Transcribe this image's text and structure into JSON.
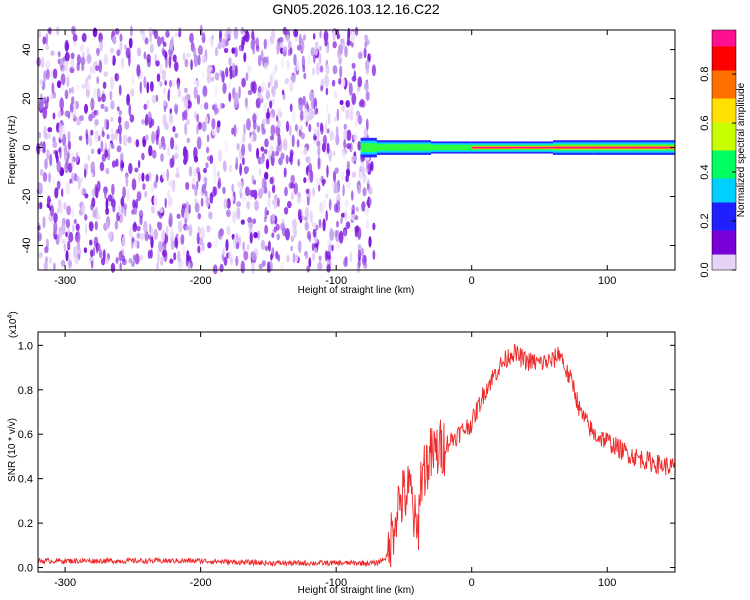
{
  "chart_data": [
    {
      "type": "heatmap",
      "title": "GN05.2026.103.12.16.C22",
      "xlabel": "Height of straight line (km)",
      "ylabel": "Frequency (Hz)",
      "xlim": [
        -320,
        150
      ],
      "ylim": [
        -50,
        48
      ],
      "xticks": [
        -300,
        -200,
        -100,
        0,
        100
      ],
      "yticks": [
        -40,
        -20,
        0,
        20,
        40
      ],
      "colorbar": {
        "label": "Normalized spectral amplitude",
        "range": [
          0,
          0.98
        ],
        "ticks": [
          "0.0",
          "0.2",
          "0.4",
          "0.6",
          "0.8"
        ],
        "tick_values": [
          0.0,
          0.2,
          0.4,
          0.6,
          0.8
        ],
        "colors": [
          "#e6d2f5",
          "#7a00d8",
          "#2020ff",
          "#00d0ff",
          "#00ff60",
          "#c8ff00",
          "#ffe000",
          "#ff7000",
          "#ff0000",
          "#ff1090"
        ]
      },
      "noise_region": {
        "x_range": [
          -320,
          -72
        ],
        "amplitude": 0.15
      },
      "signal_band": [
        {
          "x": -82,
          "half_width_hz": 4,
          "amplitude": 0.45
        },
        {
          "x": -70,
          "half_width_hz": 3,
          "amplitude": 0.5
        },
        {
          "x": -50,
          "half_width_hz": 3,
          "amplitude": 0.55
        },
        {
          "x": -30,
          "half_width_hz": 2.5,
          "amplitude": 0.6
        },
        {
          "x": -10,
          "half_width_hz": 2.5,
          "amplitude": 0.6
        },
        {
          "x": 0,
          "half_width_hz": 2.5,
          "amplitude": 0.8
        },
        {
          "x": 30,
          "half_width_hz": 2.5,
          "amplitude": 0.85
        },
        {
          "x": 60,
          "half_width_hz": 2.5,
          "amplitude": 0.9
        },
        {
          "x": 90,
          "half_width_hz": 3,
          "amplitude": 0.9
        },
        {
          "x": 120,
          "half_width_hz": 3,
          "amplitude": 0.92
        },
        {
          "x": 150,
          "half_width_hz": 3,
          "amplitude": 0.92
        }
      ]
    },
    {
      "type": "line",
      "xlabel": "Height of straight line (km)",
      "ylabel": "SNR (10 * v/v)",
      "y_multiplier_label": "(x10",
      "y_multiplier_exp": "4",
      "y_multiplier_close": ")",
      "xlim": [
        -320,
        150
      ],
      "ylim": [
        -0.02,
        1.06
      ],
      "xticks": [
        -300,
        -200,
        -100,
        0,
        100
      ],
      "yticks": [
        0.0,
        0.2,
        0.4,
        0.6,
        0.8,
        1.0
      ],
      "ytick_labels": [
        "0.0",
        "0.2",
        "0.4",
        "0.6",
        "0.8",
        "1.0"
      ],
      "color": "#ee2a2a",
      "series": [
        {
          "x": [
            -320,
            -300,
            -250,
            -200,
            -150,
            -100,
            -70,
            -62,
            -58,
            -55,
            -50,
            -45,
            -42,
            -40,
            -38,
            -35,
            -30,
            -20,
            -10,
            0,
            10,
            20,
            30,
            40,
            50,
            60,
            65,
            70,
            75,
            80,
            90,
            100,
            110,
            120,
            130,
            140,
            150
          ],
          "y": [
            0.03,
            0.03,
            0.03,
            0.03,
            0.02,
            0.02,
            0.02,
            0.05,
            0.18,
            0.28,
            0.32,
            0.35,
            0.2,
            0.12,
            0.38,
            0.45,
            0.5,
            0.55,
            0.6,
            0.65,
            0.8,
            0.9,
            0.97,
            0.93,
            0.92,
            0.93,
            0.97,
            0.88,
            0.82,
            0.7,
            0.6,
            0.57,
            0.53,
            0.5,
            0.48,
            0.46,
            0.45
          ]
        }
      ]
    }
  ]
}
